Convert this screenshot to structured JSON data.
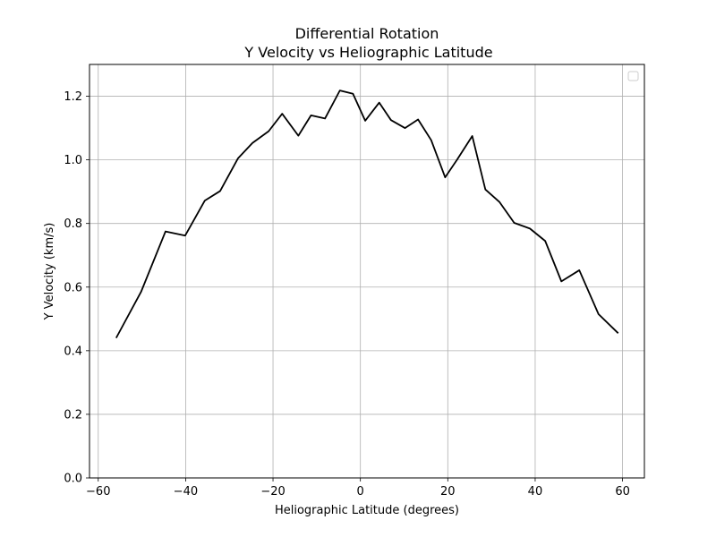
{
  "chart_data": {
    "type": "line",
    "title_line1": "Differential Rotation",
    "title_line2": "Y Velocity vs Heliographic Latitude",
    "xlabel": "Heliographic Latitude (degrees)",
    "ylabel": "Y Velocity (km/s)",
    "xlim": [
      -62,
      65
    ],
    "ylim": [
      0.0,
      1.3
    ],
    "xticks": [
      -60,
      -40,
      -20,
      0,
      20,
      40,
      60
    ],
    "xtick_labels": [
      "−60",
      "−40",
      "−20",
      "0",
      "20",
      "40",
      "60"
    ],
    "yticks": [
      0.0,
      0.2,
      0.4,
      0.6,
      0.8,
      1.0,
      1.2
    ],
    "ytick_labels": [
      "0.0",
      "0.2",
      "0.4",
      "0.6",
      "0.8",
      "1.0",
      "1.2"
    ],
    "grid": true,
    "legend": "top-right (empty)",
    "line_color": "#000000",
    "series": [
      {
        "x": [
          -55.9,
          -50.2,
          -44.6,
          -40.1,
          -35.6,
          -32.1,
          -28.0,
          -24.7,
          -21.0,
          -17.9,
          -14.2,
          -11.3,
          -8.1,
          -4.7,
          -1.7,
          1.1,
          4.3,
          7.0,
          10.2,
          13.2,
          16.2,
          19.4,
          22.1,
          25.6,
          28.6,
          31.8,
          35.2,
          38.8,
          42.3,
          46.0,
          50.1,
          54.5,
          59.0
        ],
        "y": [
          0.44,
          0.585,
          0.775,
          0.762,
          0.872,
          0.902,
          1.005,
          1.053,
          1.09,
          1.145,
          1.076,
          1.14,
          1.13,
          1.218,
          1.208,
          1.123,
          1.18,
          1.125,
          1.1,
          1.127,
          1.062,
          0.945,
          1.0,
          1.075,
          0.907,
          0.868,
          0.802,
          0.784,
          0.745,
          0.618,
          0.653,
          0.515,
          0.455
        ]
      }
    ]
  }
}
